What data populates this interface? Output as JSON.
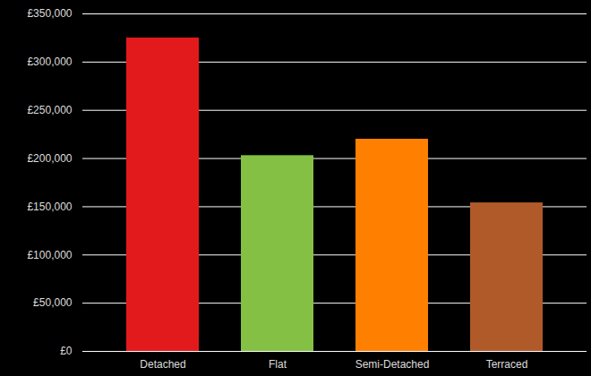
{
  "chart_data": {
    "type": "bar",
    "categories": [
      "Detached",
      "Flat",
      "Semi-Detached",
      "Terraced"
    ],
    "values": [
      325000,
      203000,
      220000,
      154000
    ],
    "colors": [
      "#e31a1c",
      "#84c044",
      "#ff8000",
      "#b05a2a"
    ],
    "ylim": [
      0,
      350000
    ],
    "yticks": [
      {
        "value": 0,
        "label": "£0"
      },
      {
        "value": 50000,
        "label": "£50,000"
      },
      {
        "value": 100000,
        "label": "£100,000"
      },
      {
        "value": 150000,
        "label": "£150,000"
      },
      {
        "value": 200000,
        "label": "£200,000"
      },
      {
        "value": 250000,
        "label": "£250,000"
      },
      {
        "value": 300000,
        "label": "£300,000"
      },
      {
        "value": 350000,
        "label": "£350,000"
      }
    ],
    "grid": true
  }
}
